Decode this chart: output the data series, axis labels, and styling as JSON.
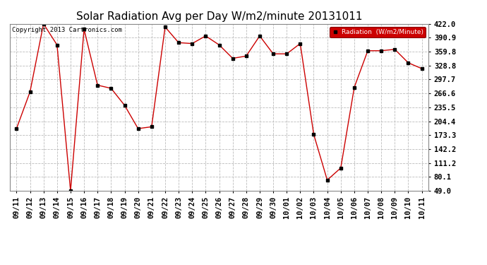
{
  "title": "Solar Radiation Avg per Day W/m2/minute 20131011",
  "copyright": "Copyright 2013 Cartronics.com",
  "legend_label": "Radiation  (W/m2/Minute)",
  "labels": [
    "09/11",
    "09/12",
    "09/13",
    "09/14",
    "09/15",
    "09/16",
    "09/17",
    "09/18",
    "09/19",
    "09/20",
    "09/21",
    "09/22",
    "09/23",
    "09/24",
    "09/25",
    "09/26",
    "09/27",
    "09/28",
    "09/29",
    "09/30",
    "10/01",
    "10/02",
    "10/03",
    "10/04",
    "10/05",
    "10/06",
    "10/07",
    "10/08",
    "10/09",
    "10/10",
    "10/11"
  ],
  "values": [
    188,
    270,
    422,
    375,
    49,
    410,
    285,
    278,
    240,
    188,
    192,
    415,
    380,
    378,
    395,
    375,
    345,
    350,
    395,
    355,
    355,
    378,
    175,
    73,
    100,
    280,
    362,
    362,
    365,
    335,
    322
  ],
  "ylim": [
    49.0,
    422.0
  ],
  "yticks": [
    49.0,
    80.1,
    111.2,
    142.2,
    173.3,
    204.4,
    235.5,
    266.6,
    297.7,
    328.8,
    359.8,
    390.9,
    422.0
  ],
  "line_color": "#cc0000",
  "marker_color": "#000000",
  "bg_color": "#ffffff",
  "plot_bg_color": "#ffffff",
  "grid_color": "#bbbbbb",
  "title_fontsize": 11,
  "tick_fontsize": 7.5,
  "legend_bg": "#cc0000",
  "legend_text_color": "#ffffff"
}
